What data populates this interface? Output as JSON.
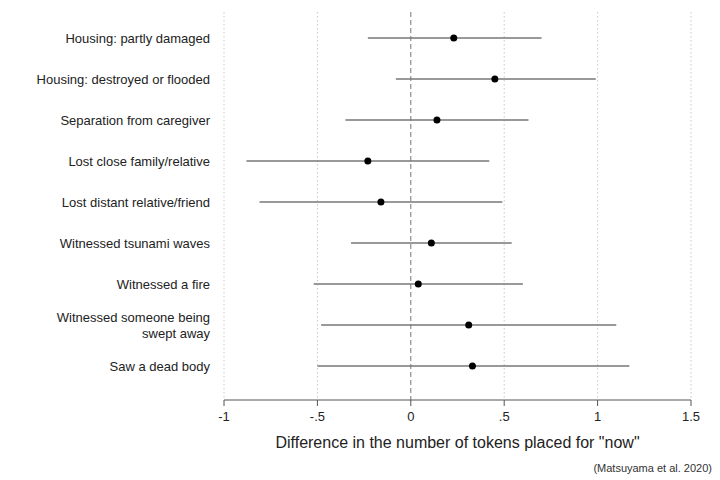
{
  "chart_data": {
    "type": "forest",
    "orientation": "horizontal",
    "x_label": "Difference in the number of tokens placed for \"now\"",
    "annotation": "(Matsuyama et al. 2020)",
    "categories": [
      "Housing: partly damaged",
      "Housing: destroyed or flooded",
      "Separation from caregiver",
      "Lost close family/relative",
      "Lost distant relative/friend",
      "Witnessed tsunami waves",
      "Witnessed a fire",
      "Witnessed someone being\nswept away",
      "Saw a dead body"
    ],
    "values": [
      0.23,
      0.45,
      0.14,
      -0.23,
      -0.16,
      0.11,
      0.04,
      0.31,
      0.33
    ],
    "ci_low": [
      -0.23,
      -0.08,
      -0.35,
      -0.88,
      -0.81,
      -0.32,
      -0.52,
      -0.48,
      -0.5
    ],
    "ci_high": [
      0.7,
      0.99,
      0.63,
      0.42,
      0.49,
      0.54,
      0.6,
      1.1,
      1.17
    ],
    "color": "#000000",
    "marker": "circle",
    "xlim": [
      -1,
      1.5
    ],
    "xticks": [
      -1,
      {
        "value": -0.5,
        "label": "-.5"
      },
      0,
      {
        "value": 0.5,
        "label": ".5"
      },
      1,
      1.5
    ],
    "grid": true
  }
}
